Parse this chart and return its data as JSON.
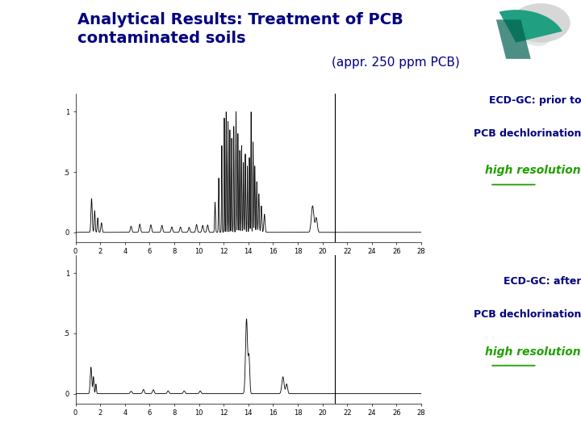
{
  "title_bold": "Analytical Results: Treatment of PCB\ncontaminated soils",
  "title_light": "(appr. 250 ppm PCB)",
  "background_left": "#40C8A0",
  "background_main": "#FFFFFF",
  "header_bar_color": "#000080",
  "plot1_label_line1": "ECD-GC: prior to",
  "plot1_label_line2": "PCB dechlorination",
  "plot1_label_line3": "high resolution",
  "plot2_label_line1": "ECD-GC: after",
  "plot2_label_line2": "PCB dechlorination",
  "plot2_label_line3": "high resolution",
  "plot_line_color": "#000000",
  "axis_color": "#000000",
  "label_color": "#000080",
  "highlight_color": "#20A000"
}
